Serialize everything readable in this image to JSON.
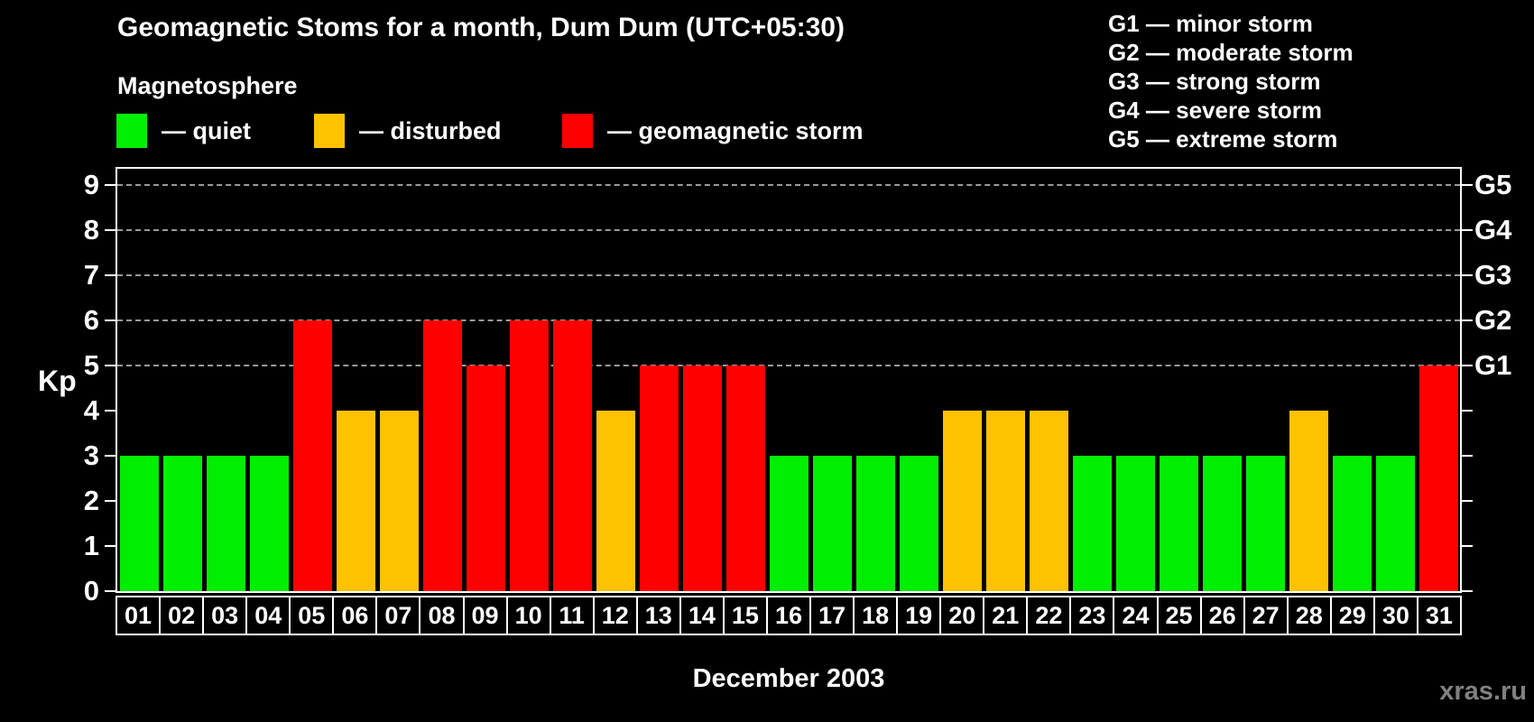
{
  "header": {
    "title": "Geomagnetic Stoms for a month, Dum Dum (UTC+05:30)",
    "subtitle": "Magnetosphere",
    "legend": [
      {
        "status": "quiet",
        "label": "— quiet",
        "color": "#00ee00"
      },
      {
        "status": "disturbed",
        "label": "— disturbed",
        "color": "#ffc200"
      },
      {
        "status": "storm",
        "label": "— geomagnetic storm",
        "color": "#ff0000"
      }
    ],
    "g_scale_legend": [
      "G1 — minor storm",
      "G2 — moderate storm",
      "G3 — strong storm",
      "G4 — severe storm",
      "G5 — extreme storm"
    ]
  },
  "chart_data": {
    "type": "bar",
    "title": "Geomagnetic Stoms for a month, Dum Dum (UTC+05:30)",
    "xlabel": "December 2003",
    "ylabel": "Kp",
    "ylim": [
      0,
      9.36
    ],
    "yticks": [
      0,
      1,
      2,
      3,
      4,
      5,
      6,
      7,
      8,
      9
    ],
    "gridlines_at": [
      5,
      6,
      7,
      8,
      9
    ],
    "grid": "dashed horizontal at G-storm levels only",
    "legend_position": "top-left",
    "right_axis_labels": [
      {
        "kp": 5,
        "label": "G1"
      },
      {
        "kp": 6,
        "label": "G2"
      },
      {
        "kp": 7,
        "label": "G3"
      },
      {
        "kp": 8,
        "label": "G4"
      },
      {
        "kp": 9,
        "label": "G5"
      }
    ],
    "categories": [
      "01",
      "02",
      "03",
      "04",
      "05",
      "06",
      "07",
      "08",
      "09",
      "10",
      "11",
      "12",
      "13",
      "14",
      "15",
      "16",
      "17",
      "18",
      "19",
      "20",
      "21",
      "22",
      "23",
      "24",
      "25",
      "26",
      "27",
      "28",
      "29",
      "30",
      "31"
    ],
    "values": [
      3,
      3,
      3,
      3,
      6,
      4,
      4,
      6,
      5,
      6,
      6,
      4,
      5,
      5,
      5,
      3,
      3,
      3,
      3,
      4,
      4,
      4,
      3,
      3,
      3,
      3,
      3,
      4,
      3,
      3,
      5
    ],
    "statuses": [
      "quiet",
      "quiet",
      "quiet",
      "quiet",
      "storm",
      "disturbed",
      "disturbed",
      "storm",
      "storm",
      "storm",
      "storm",
      "disturbed",
      "storm",
      "storm",
      "storm",
      "quiet",
      "quiet",
      "quiet",
      "quiet",
      "disturbed",
      "disturbed",
      "disturbed",
      "quiet",
      "quiet",
      "quiet",
      "quiet",
      "quiet",
      "disturbed",
      "quiet",
      "quiet",
      "storm"
    ],
    "colors": {
      "quiet": "#00ee00",
      "disturbed": "#ffc200",
      "storm": "#ff0000"
    }
  },
  "footer": {
    "watermark": "xras.ru"
  }
}
